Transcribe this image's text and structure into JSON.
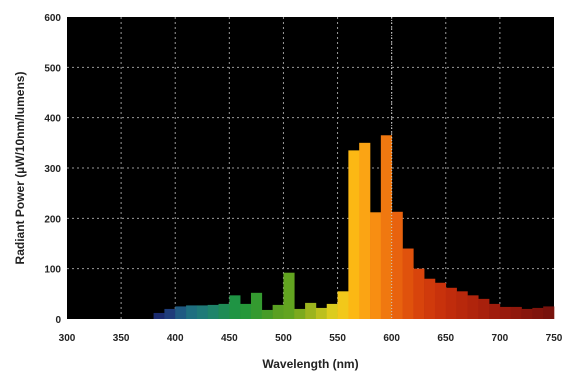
{
  "chart_data": {
    "type": "bar",
    "title": "",
    "xlabel": "Wavelength (nm)",
    "ylabel": "Radiant Power (µW/10nm/lumens)",
    "xlim": [
      300,
      750
    ],
    "ylim": [
      0,
      600
    ],
    "xticks": [
      "300",
      "350",
      "400",
      "450",
      "500",
      "550",
      "600",
      "650",
      "700",
      "750"
    ],
    "yticks": [
      "0",
      "100",
      "200",
      "300",
      "400",
      "500",
      "600"
    ],
    "grid": true,
    "background": "#000000",
    "grid_color": "#9a9a9a",
    "marker_line_x": 600,
    "bin_width_nm": 10,
    "x": [
      385,
      395,
      405,
      415,
      425,
      435,
      445,
      455,
      465,
      475,
      485,
      495,
      505,
      515,
      525,
      535,
      545,
      555,
      565,
      575,
      585,
      595,
      605,
      615,
      625,
      635,
      645,
      655,
      665,
      675,
      685,
      695,
      705,
      715,
      725,
      735,
      745
    ],
    "values": [
      12,
      20,
      25,
      27,
      27,
      28,
      30,
      47,
      30,
      52,
      18,
      28,
      92,
      20,
      32,
      22,
      30,
      55,
      335,
      350,
      212,
      365,
      213,
      140,
      100,
      80,
      72,
      62,
      55,
      47,
      40,
      30,
      24,
      24,
      20,
      22,
      25
    ],
    "colors": [
      "#1a2a6e",
      "#1e3c7a",
      "#1f5a82",
      "#1f6f80",
      "#1f7a78",
      "#1f846a",
      "#1f8c55",
      "#1f9444",
      "#26983a",
      "#349a30",
      "#469c28",
      "#5aa022",
      "#62a420",
      "#7caa1e",
      "#9cb41e",
      "#bcc01e",
      "#dccc1e",
      "#f2c81a",
      "#fcb814",
      "#fba414",
      "#f88e12",
      "#f07810",
      "#e8620e",
      "#e0520c",
      "#d8440c",
      "#d03a0c",
      "#c8320c",
      "#c02c0c",
      "#b8280c",
      "#b0240c",
      "#a8200c",
      "#a01c0c",
      "#981a0c",
      "#90180c",
      "#88160c",
      "#80140c",
      "#78120c"
    ]
  }
}
